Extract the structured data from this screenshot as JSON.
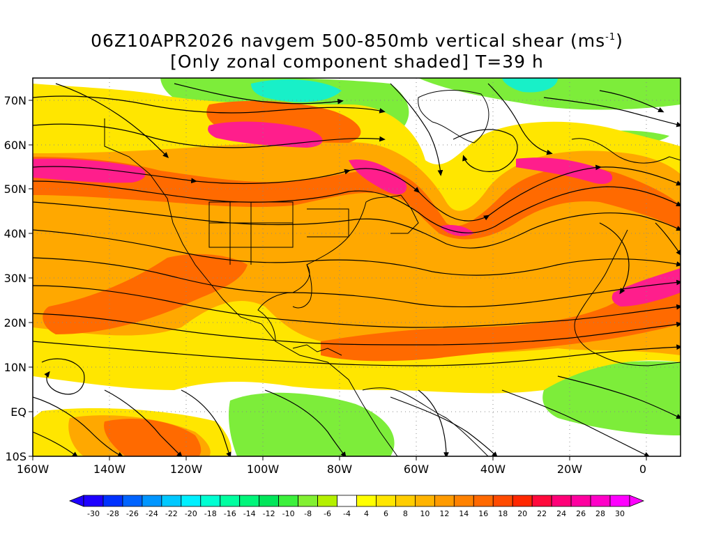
{
  "map": {
    "title_line1_prefix": "06Z10APR2026 navgem 500-850mb vertical shear (ms",
    "title_line1_sup": "-1",
    "title_line1_suffix": ")",
    "title_line2": "[Only zonal component shaded] T=39 h",
    "lon_labels": [
      "160W",
      "140W",
      "120W",
      "100W",
      "80W",
      "60W",
      "40W",
      "20W",
      "0"
    ],
    "lat_labels": [
      "70N",
      "60N",
      "50N",
      "40N",
      "30N",
      "20N",
      "10N",
      "EQ",
      "10S"
    ],
    "colorbar": {
      "labels": [
        "-30",
        "-28",
        "-26",
        "-24",
        "-22",
        "-20",
        "-18",
        "-16",
        "-14",
        "-12",
        "-10",
        "-8",
        "-6",
        "-4",
        "4",
        "6",
        "8",
        "10",
        "12",
        "14",
        "16",
        "18",
        "20",
        "22",
        "24",
        "26",
        "28",
        "30"
      ],
      "colors": [
        "#1e00ff",
        "#0032ff",
        "#0064ff",
        "#0096ff",
        "#00c8ff",
        "#00f0ff",
        "#00ffd2",
        "#00ffa0",
        "#00f57a",
        "#00e65a",
        "#3cf03c",
        "#82f032",
        "#b4f000",
        "#ffffff",
        "#ffff00",
        "#ffe600",
        "#ffcd00",
        "#ffb400",
        "#ff9b00",
        "#ff8200",
        "#ff6900",
        "#ff4b00",
        "#ff2800",
        "#ff0a3c",
        "#ff0078",
        "#ff00a0",
        "#ff00c8",
        "#ff00ff"
      ]
    },
    "colors": {
      "strong_shear": "#ff1e8c",
      "high_shear": "#ff6a00",
      "moderate_shear": "#ffa800",
      "low_shear": "#ffe600",
      "negative_shear": "#7ded3a",
      "strong_negative_shear": "#18f0c8",
      "streamline": "#000000",
      "coastline": "#000000"
    }
  }
}
